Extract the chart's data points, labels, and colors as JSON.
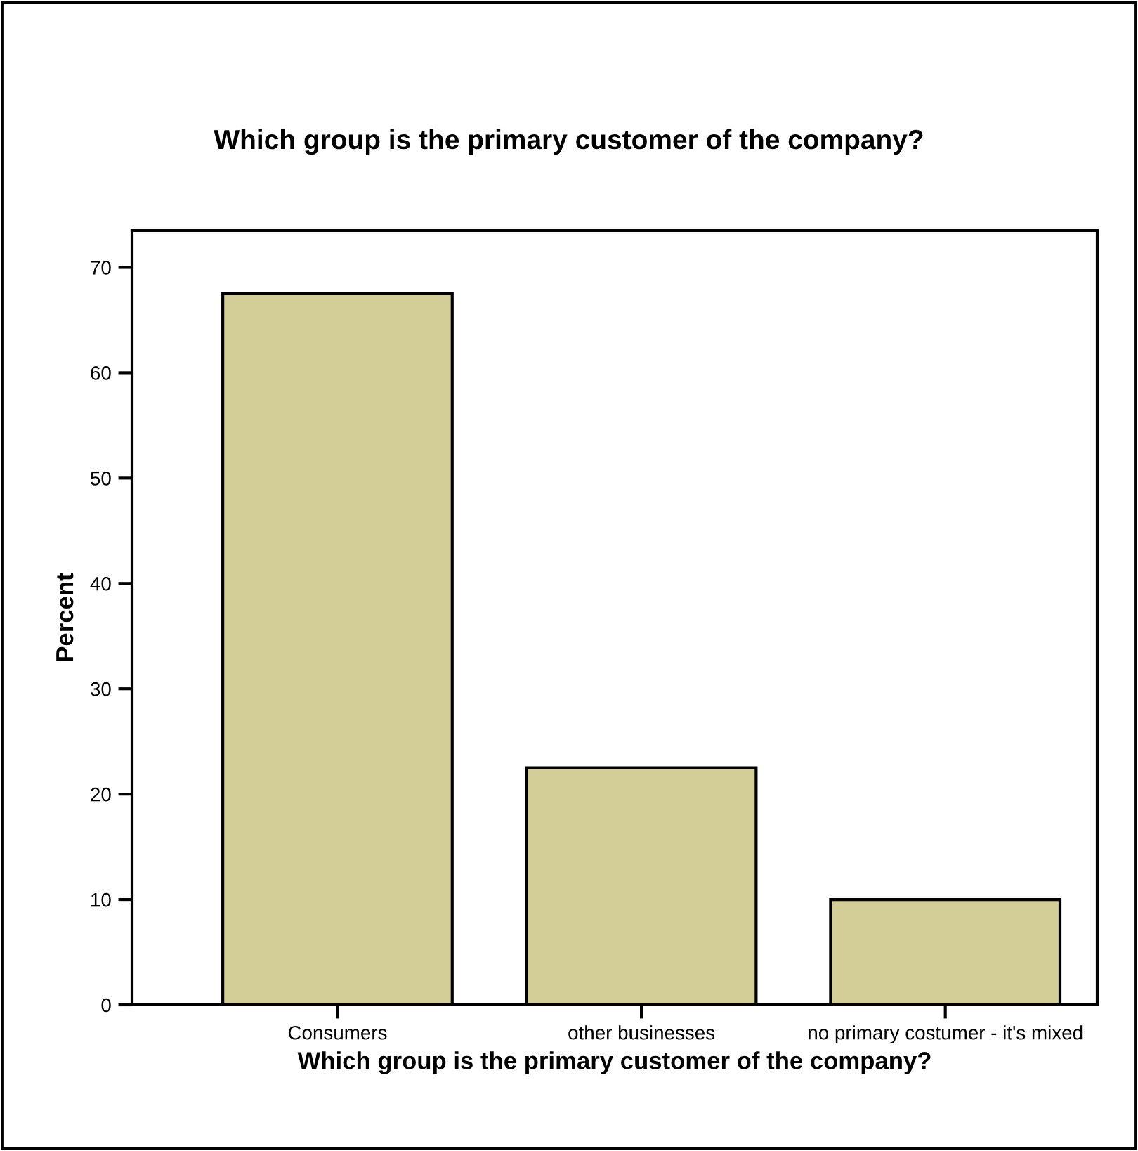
{
  "chart_data": {
    "type": "bar",
    "title": "Which group is the primary customer of the company?",
    "xlabel": "Which group is the primary customer of the company?",
    "ylabel": "Percent",
    "categories": [
      "Consumers",
      "other businesses",
      "no primary costumer - it's mixed"
    ],
    "values": [
      67.5,
      22.5,
      10
    ],
    "color": "#d3ce97",
    "ylim": [
      0,
      73.5
    ],
    "yticks": [
      0,
      10,
      20,
      30,
      40,
      50,
      60,
      70
    ],
    "grid": false,
    "legend": false
  }
}
